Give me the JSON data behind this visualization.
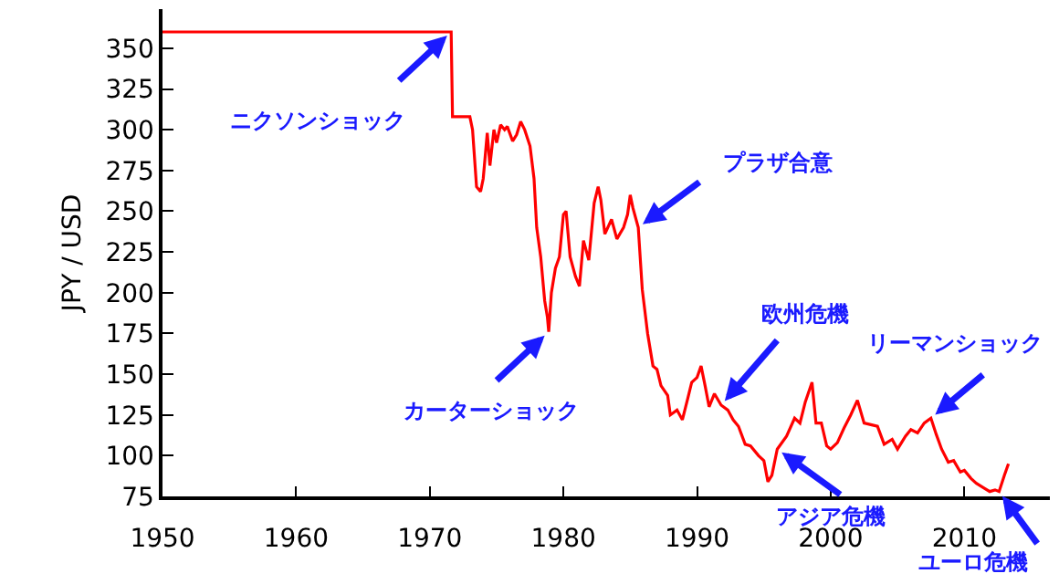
{
  "chart_data": {
    "type": "line",
    "ylabel": "JPY / USD",
    "x": [
      1950,
      1971.6,
      1971.7,
      1973.0,
      1973.2,
      1973.5,
      1973.8,
      1974.0,
      1974.3,
      1974.5,
      1974.8,
      1975.0,
      1975.3,
      1975.6,
      1975.8,
      1976.2,
      1976.5,
      1976.8,
      1977.1,
      1977.5,
      1977.8,
      1978.0,
      1978.3,
      1978.6,
      1978.8,
      1978.9,
      1979.1,
      1979.4,
      1979.7,
      1980.0,
      1980.2,
      1980.5,
      1980.9,
      1981.2,
      1981.5,
      1981.9,
      1982.3,
      1982.6,
      1982.8,
      1983.1,
      1983.6,
      1984.0,
      1984.5,
      1984.8,
      1985.0,
      1985.2,
      1985.6,
      1985.9,
      1986.3,
      1986.7,
      1987.0,
      1987.3,
      1987.8,
      1988.0,
      1988.5,
      1988.9,
      1989.3,
      1989.6,
      1990.0,
      1990.3,
      1990.6,
      1990.9,
      1991.3,
      1991.8,
      1992.3,
      1992.7,
      1993.1,
      1993.6,
      1994.0,
      1994.6,
      1995.0,
      1995.3,
      1995.6,
      1996.0,
      1996.7,
      1997.3,
      1997.7,
      1998.1,
      1998.6,
      1998.9,
      1999.3,
      1999.7,
      2000.0,
      2000.5,
      2001.0,
      2001.5,
      2002.0,
      2002.5,
      2003.0,
      2003.5,
      2004.0,
      2004.6,
      2005.0,
      2005.6,
      2006.0,
      2006.5,
      2007.0,
      2007.5,
      2007.9,
      2008.3,
      2008.8,
      2009.2,
      2009.7,
      2010.0,
      2010.5,
      2010.9,
      2011.5,
      2011.9,
      2012.3,
      2012.6,
      2013.0,
      2013.3
    ],
    "series": [
      {
        "color": "#ff0000",
        "values": [
          360,
          360,
          308,
          308,
          300,
          265,
          262,
          270,
          298,
          278,
          300,
          292,
          303,
          300,
          302,
          293,
          297,
          305,
          300,
          290,
          270,
          240,
          222,
          195,
          185,
          176,
          200,
          215,
          222,
          248,
          250,
          222,
          210,
          204,
          232,
          220,
          255,
          265,
          257,
          236,
          245,
          233,
          240,
          248,
          260,
          252,
          240,
          202,
          175,
          155,
          153,
          143,
          137,
          125,
          128,
          122,
          135,
          145,
          148,
          155,
          143,
          130,
          138,
          131,
          128,
          122,
          118,
          107,
          106,
          100,
          97,
          84,
          88,
          104,
          112,
          123,
          120,
          133,
          145,
          120,
          120,
          106,
          104,
          108,
          117,
          125,
          134,
          120,
          119,
          118,
          107,
          110,
          104,
          112,
          116,
          114,
          120,
          123,
          113,
          104,
          96,
          97,
          90,
          91,
          86,
          83,
          80,
          78,
          79,
          78,
          88,
          95
        ]
      }
    ],
    "xlim": [
      1950,
      2016.4
    ],
    "ylim": [
      75,
      374
    ],
    "xticks": [
      1950,
      1960,
      1970,
      1980,
      1990,
      2000,
      2010
    ],
    "yticks": [
      75,
      100,
      125,
      150,
      175,
      200,
      225,
      250,
      275,
      300,
      325,
      350
    ],
    "grid": false,
    "marker": "none",
    "line_style": "solid",
    "annotations": [
      {
        "text": "ニクソンショック",
        "x": 1971.6,
        "y": 360
      },
      {
        "text": "カーターショック",
        "x": 1978.9,
        "y": 176
      },
      {
        "text": "プラザ合意",
        "x": 1985.6,
        "y": 240
      },
      {
        "text": "欧州危機",
        "x": 1991.8,
        "y": 131
      },
      {
        "text": "リーマンショック",
        "x": 2007.5,
        "y": 123
      },
      {
        "text": "アジア危機",
        "x": 1996.0,
        "y": 104
      },
      {
        "text": "ユーロ危機",
        "x": 2012.6,
        "y": 78
      }
    ]
  }
}
